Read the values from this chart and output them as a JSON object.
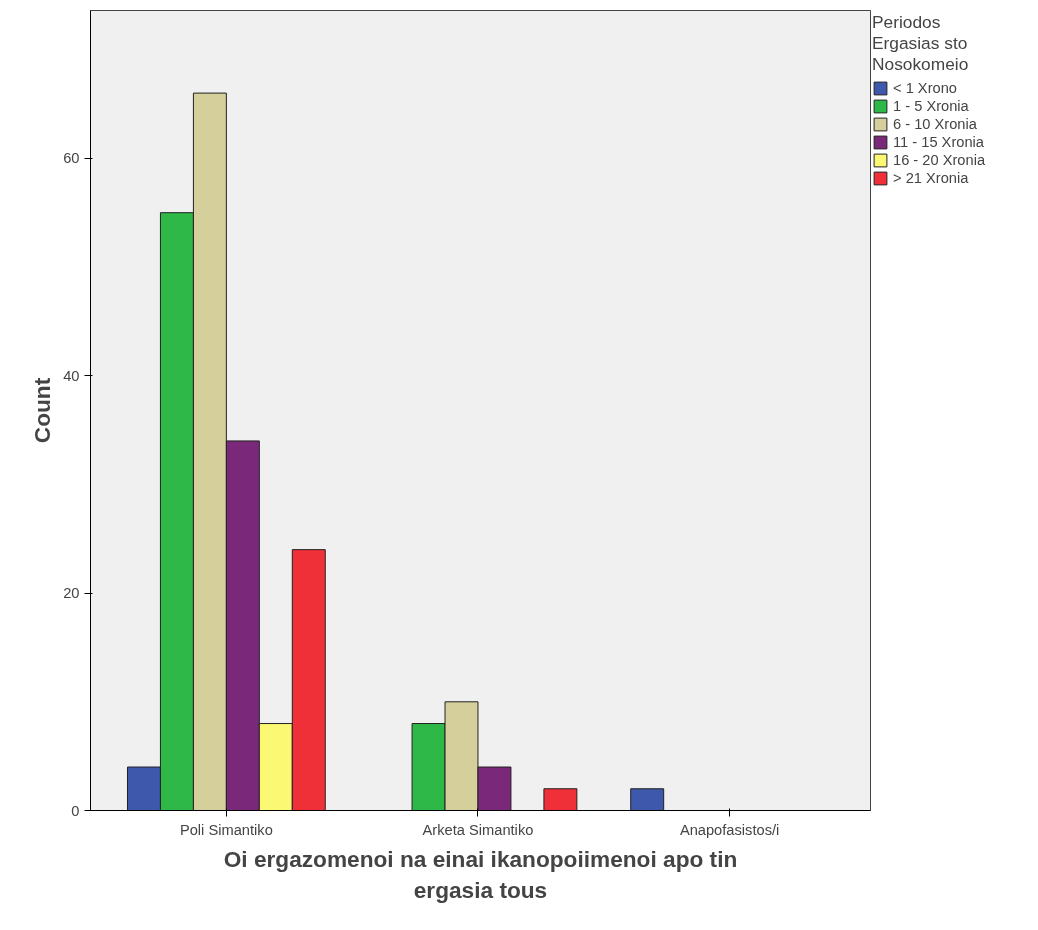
{
  "chart_data": {
    "type": "bar",
    "xlabel": "Oi ergazomenoi na einai ikanopoiimenoi apo tin ergasia tous",
    "ylabel": "Count",
    "legend_title": "Periodos Ergasias sto Nosokomeio",
    "categories": [
      "Poli Simantiko",
      "Arketa Simantiko",
      "Anapofasistos/i"
    ],
    "series": [
      {
        "name": "< 1 Xrono",
        "color": "#3e58ac",
        "values": [
          4,
          0,
          2
        ]
      },
      {
        "name": "1 - 5 Xronia",
        "color": "#2eb848",
        "values": [
          55,
          8,
          0
        ]
      },
      {
        "name": "6 - 10 Xronia",
        "color": "#d4cf9b",
        "values": [
          66,
          10,
          0
        ]
      },
      {
        "name": "11 - 15 Xronia",
        "color": "#7a287a",
        "values": [
          34,
          4,
          0
        ]
      },
      {
        "name": "16 - 20 Xronia",
        "color": "#fbf873",
        "values": [
          8,
          0,
          0
        ]
      },
      {
        "name": "> 21 Xronia",
        "color": "#ef3038",
        "values": [
          24,
          2,
          0
        ]
      }
    ],
    "ylim": [
      0,
      73.6
    ],
    "yticks": [
      0,
      20,
      40,
      60
    ],
    "grid": false,
    "legend": "right"
  }
}
